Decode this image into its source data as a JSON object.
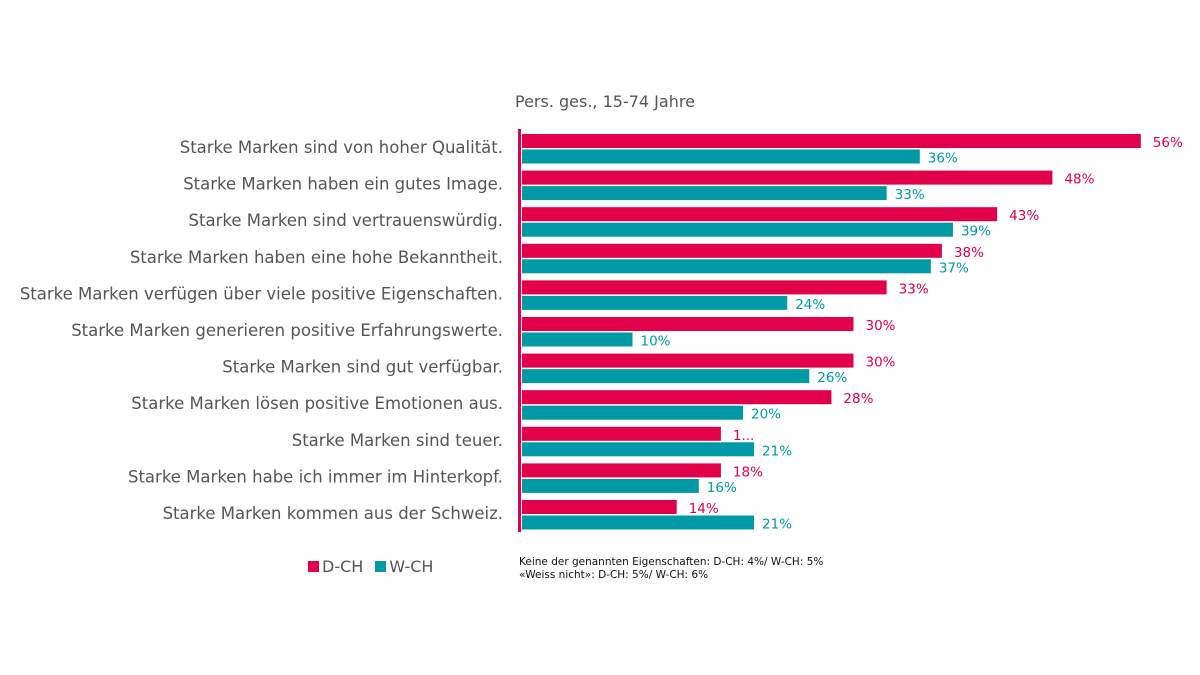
{
  "chart_data": {
    "type": "bar",
    "orientation": "horizontal",
    "title": "",
    "subtitle": "Pers. ges., 15-74 Jahre",
    "xlabel": "",
    "ylabel": "",
    "xlim": [
      0,
      56
    ],
    "grid": false,
    "legend_position": "bottom-left",
    "categories": [
      "Starke Marken sind von hoher Qualität.",
      "Starke Marken haben ein gutes Image.",
      "Starke Marken sind vertrauenswürdig.",
      "Starke Marken haben eine hohe Bekanntheit.",
      "Starke Marken verfügen über viele positive Eigenschaften.",
      "Starke Marken generieren positive Erfahrungswerte.",
      "Starke Marken sind gut verfügbar.",
      "Starke Marken lösen positive Emotionen aus.",
      "Starke Marken sind teuer.",
      "Starke Marken habe ich immer im Hinterkopf.",
      "Starke Marken kommen aus der Schweiz."
    ],
    "series": [
      {
        "name": "D-CH",
        "color": "#e2004a",
        "values": [
          56,
          48,
          43,
          38,
          33,
          30,
          30,
          28,
          18,
          18,
          14
        ],
        "labels": [
          "56%",
          "48%",
          "43%",
          "38%",
          "33%",
          "30%",
          "30%",
          "28%",
          "1...",
          "18%",
          "14%"
        ]
      },
      {
        "name": "W-CH",
        "color": "#009aa6",
        "values": [
          36,
          33,
          39,
          37,
          24,
          10,
          26,
          20,
          21,
          16,
          21
        ],
        "labels": [
          "36%",
          "33%",
          "39%",
          "37%",
          "24%",
          "10%",
          "26%",
          "20%",
          "21%",
          "16%",
          "21%"
        ]
      }
    ],
    "footnotes": [
      "Keine der genannten Eigenschaften: D-CH: 4%/ W-CH: 5%",
      "«Weiss nicht»: D-CH: 5%/ W-CH: 6%"
    ]
  }
}
